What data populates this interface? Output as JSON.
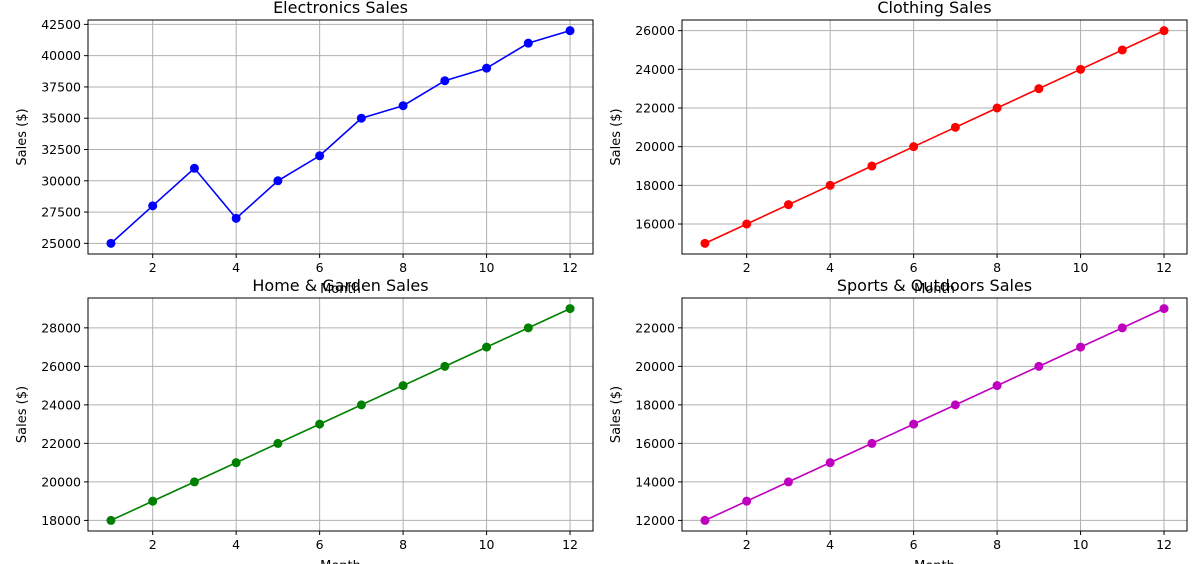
{
  "chart_data": [
    {
      "type": "line",
      "title": "Electronics Sales",
      "xlabel": "Month",
      "ylabel": "Sales ($)",
      "x": [
        1,
        2,
        3,
        4,
        5,
        6,
        7,
        8,
        9,
        10,
        11,
        12
      ],
      "series": [
        {
          "values": [
            25000,
            28000,
            31000,
            27000,
            30000,
            32000,
            35000,
            36000,
            38000,
            39000,
            41000,
            42000
          ],
          "color": "#0000ff"
        }
      ],
      "xlim": [
        0.45,
        12.55
      ],
      "ylim": [
        24150,
        42850
      ],
      "xticks": [
        2,
        4,
        6,
        8,
        10,
        12
      ],
      "yticks": [
        25000,
        27500,
        30000,
        32500,
        35000,
        37500,
        40000,
        42500
      ],
      "grid": true,
      "marker": "circle"
    },
    {
      "type": "line",
      "title": "Clothing Sales",
      "xlabel": "Month",
      "ylabel": "Sales ($)",
      "x": [
        1,
        2,
        3,
        4,
        5,
        6,
        7,
        8,
        9,
        10,
        11,
        12
      ],
      "series": [
        {
          "values": [
            15000,
            16000,
            17000,
            18000,
            19000,
            20000,
            21000,
            22000,
            23000,
            24000,
            25000,
            26000
          ],
          "color": "#ff0000"
        }
      ],
      "xlim": [
        0.45,
        12.55
      ],
      "ylim": [
        14450,
        26550
      ],
      "xticks": [
        2,
        4,
        6,
        8,
        10,
        12
      ],
      "yticks": [
        16000,
        18000,
        20000,
        22000,
        24000,
        26000
      ],
      "grid": true,
      "marker": "circle"
    },
    {
      "type": "line",
      "title": "Home & Garden Sales",
      "xlabel": "Month",
      "ylabel": "Sales ($)",
      "x": [
        1,
        2,
        3,
        4,
        5,
        6,
        7,
        8,
        9,
        10,
        11,
        12
      ],
      "series": [
        {
          "values": [
            18000,
            19000,
            20000,
            21000,
            22000,
            23000,
            24000,
            25000,
            26000,
            27000,
            28000,
            29000
          ],
          "color": "#008000"
        }
      ],
      "xlim": [
        0.45,
        12.55
      ],
      "ylim": [
        17450,
        29550
      ],
      "xticks": [
        2,
        4,
        6,
        8,
        10,
        12
      ],
      "yticks": [
        18000,
        20000,
        22000,
        24000,
        26000,
        28000
      ],
      "grid": true,
      "marker": "circle"
    },
    {
      "type": "line",
      "title": "Sports & Outdoors Sales",
      "xlabel": "Month",
      "ylabel": "Sales ($)",
      "x": [
        1,
        2,
        3,
        4,
        5,
        6,
        7,
        8,
        9,
        10,
        11,
        12
      ],
      "series": [
        {
          "values": [
            12000,
            13000,
            14000,
            15000,
            16000,
            17000,
            18000,
            19000,
            20000,
            21000,
            22000,
            23000
          ],
          "color": "#bf00bf"
        }
      ],
      "xlim": [
        0.45,
        12.55
      ],
      "ylim": [
        11450,
        23550
      ],
      "xticks": [
        2,
        4,
        6,
        8,
        10,
        12
      ],
      "yticks": [
        12000,
        14000,
        16000,
        18000,
        20000,
        22000
      ],
      "grid": true,
      "marker": "circle"
    }
  ]
}
